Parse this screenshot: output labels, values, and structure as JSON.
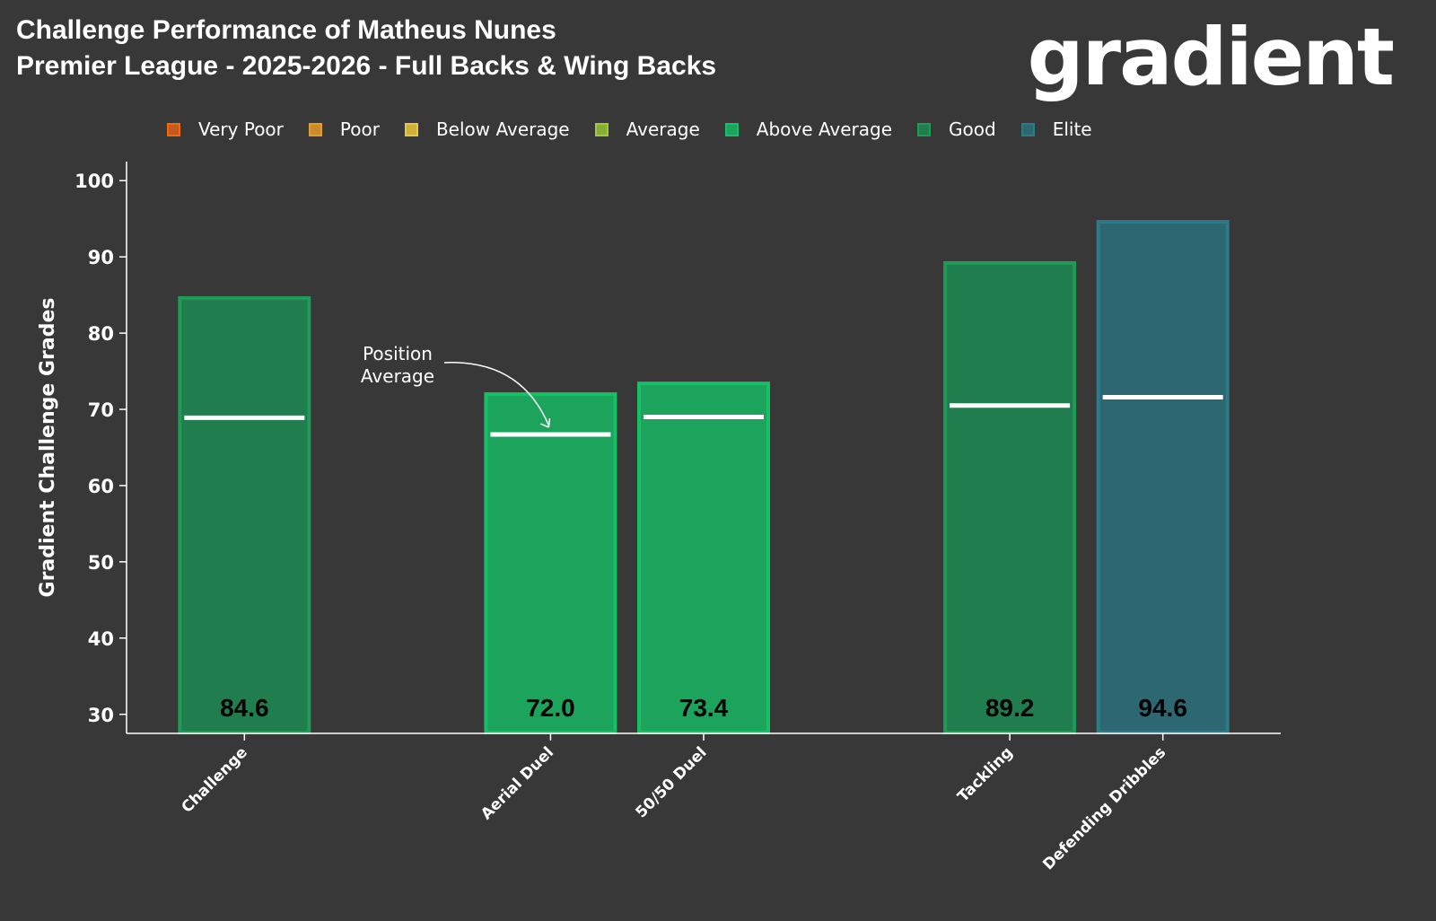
{
  "title_line1": "Challenge Performance of Matheus Nunes",
  "title_line2": "Premier League - 2025-2026 - Full Backs & Wing Backs",
  "logo": "gradient",
  "legend": [
    {
      "label": "Very Poor",
      "fill": "#c9581a",
      "edge": "#f06a10"
    },
    {
      "label": "Poor",
      "fill": "#c98b2c",
      "edge": "#e89a2a"
    },
    {
      "label": "Below Average",
      "fill": "#cfae3a",
      "edge": "#eac740"
    },
    {
      "label": "Average",
      "fill": "#86ad36",
      "edge": "#9ccb3c"
    },
    {
      "label": "Above Average",
      "fill": "#1ca35c",
      "edge": "#17c065"
    },
    {
      "label": "Good",
      "fill": "#207e4e",
      "edge": "#1f9a57"
    },
    {
      "label": "Elite",
      "fill": "#2d6872",
      "edge": "#2d7a88"
    }
  ],
  "chart_data": {
    "type": "bar",
    "title": "Challenge Performance of Matheus Nunes",
    "ylabel": "Gradient Challenge Grades",
    "xlabel": "",
    "ylim": [
      27.5,
      102.5
    ],
    "yticks": [
      30,
      40,
      50,
      60,
      70,
      80,
      90,
      100
    ],
    "grid": false,
    "legend_placement": "top",
    "categories": [
      "Challenge",
      "Aerial Duel",
      "50/50 Duel",
      "Tackling",
      "Defending Dribbles"
    ],
    "x": [
      0,
      2,
      3,
      5,
      6
    ],
    "values": [
      84.6,
      72.0,
      73.4,
      89.2,
      94.6
    ],
    "labels": [
      "84.6",
      "72.0",
      "73.4",
      "89.2",
      "94.6"
    ],
    "grades": [
      "Good",
      "Above Average",
      "Above Average",
      "Good",
      "Elite"
    ],
    "position_average": [
      68.9,
      66.7,
      69.0,
      70.5,
      71.6
    ],
    "annotation": {
      "text_line1": "Position",
      "text_line2": "Average",
      "target": "Aerial Duel"
    }
  }
}
